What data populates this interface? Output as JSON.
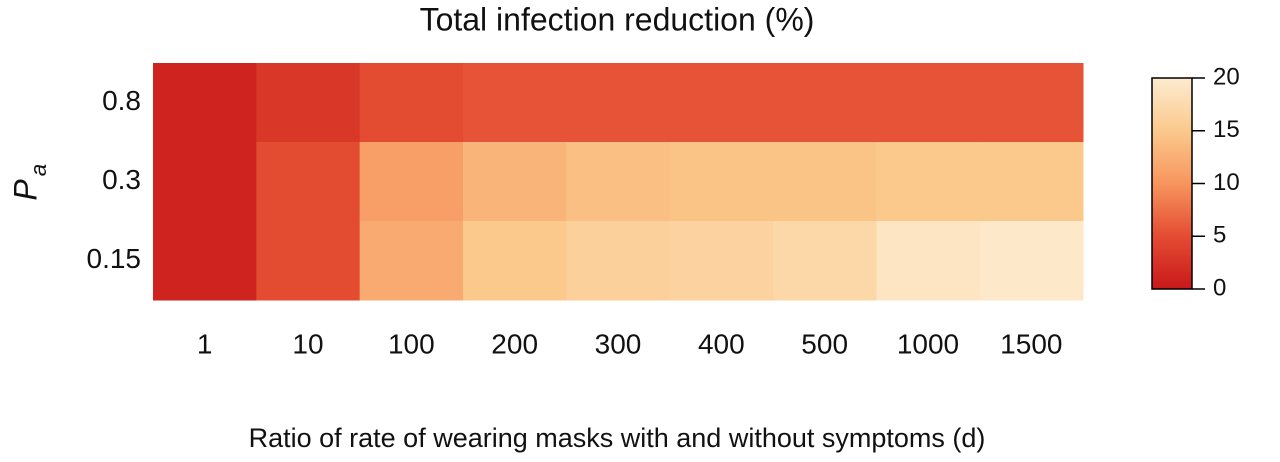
{
  "chart_data": {
    "type": "heatmap",
    "title": "Total infection reduction (%)",
    "xlabel": "Ratio of rate of wearing masks with and without symptoms (d)",
    "ylabel": "P",
    "ylabel_subscript": "a",
    "x": [
      "1",
      "10",
      "100",
      "200",
      "300",
      "400",
      "500",
      "1000",
      "1500"
    ],
    "y": [
      "0.8",
      "0.3",
      "0.15"
    ],
    "values": [
      [
        1,
        3,
        5,
        5.5,
        5.5,
        5.5,
        5.5,
        5.5,
        5.5
      ],
      [
        1,
        5,
        11,
        13,
        14,
        14.5,
        14.5,
        15,
        15
      ],
      [
        1,
        5,
        12,
        15,
        16,
        16.5,
        17,
        19,
        19.5
      ]
    ],
    "colorscale": [
      "#c8191a",
      "#e44c32",
      "#f7955e",
      "#fbc98c",
      "#fdebd0"
    ],
    "clim": [
      0,
      20
    ],
    "cticks": [
      0,
      5,
      10,
      15,
      20
    ]
  }
}
